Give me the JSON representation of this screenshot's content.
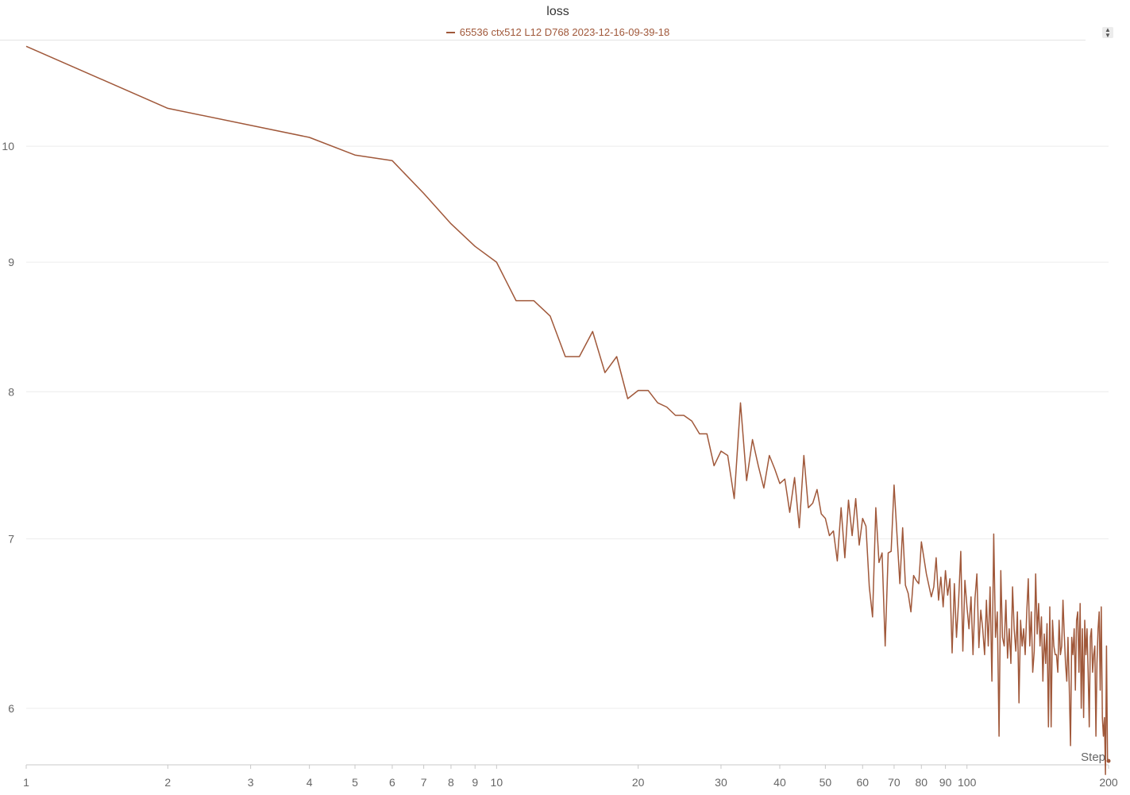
{
  "chart_data": {
    "type": "line",
    "title": "loss",
    "xlabel": "Step",
    "ylabel": "",
    "x_scale": "log",
    "y_scale": "log",
    "xlim": [
      1,
      200
    ],
    "ylim": [
      5.7,
      11
    ],
    "x_ticks": [
      1,
      2,
      3,
      4,
      5,
      6,
      7,
      8,
      9,
      10,
      20,
      30,
      40,
      50,
      60,
      70,
      80,
      90,
      100,
      200
    ],
    "x_tick_labels": [
      "1",
      "2",
      "3",
      "4",
      "5",
      "6",
      "7",
      "8",
      "9",
      "10",
      "20",
      "30",
      "40",
      "50",
      "60",
      "70",
      "80",
      "90",
      "100",
      "200"
    ],
    "y_ticks": [
      6,
      7,
      8,
      9,
      10
    ],
    "y_tick_labels": [
      "6",
      "7",
      "8",
      "9",
      "10"
    ],
    "grid": true,
    "legend_position": "top",
    "series": [
      {
        "name": "65536 ctx512 L12 D768 2023-12-16-09-39-18",
        "color": "#a0583a",
        "points": [
          [
            1,
            10.95
          ],
          [
            2,
            10.35
          ],
          [
            4,
            10.08
          ],
          [
            5,
            9.92
          ],
          [
            6,
            9.87
          ],
          [
            7,
            9.58
          ],
          [
            8,
            9.32
          ],
          [
            9,
            9.13
          ],
          [
            10,
            9.0
          ],
          [
            11,
            8.69
          ],
          [
            12,
            8.69
          ],
          [
            13,
            8.57
          ],
          [
            14,
            8.26
          ],
          [
            15,
            8.26
          ],
          [
            16,
            8.45
          ],
          [
            17,
            8.14
          ],
          [
            18,
            8.26
          ],
          [
            19,
            7.95
          ],
          [
            20,
            8.01
          ],
          [
            21,
            8.01
          ],
          [
            22,
            7.92
          ],
          [
            23,
            7.89
          ],
          [
            24,
            7.83
          ],
          [
            25,
            7.83
          ],
          [
            26,
            7.79
          ],
          [
            27,
            7.7
          ],
          [
            28,
            7.7
          ],
          [
            29,
            7.48
          ],
          [
            30,
            7.58
          ],
          [
            31,
            7.55
          ],
          [
            32,
            7.26
          ],
          [
            33,
            7.92
          ],
          [
            34,
            7.38
          ],
          [
            35,
            7.66
          ],
          [
            36,
            7.48
          ],
          [
            37,
            7.33
          ],
          [
            38,
            7.55
          ],
          [
            39,
            7.46
          ],
          [
            40,
            7.36
          ],
          [
            41,
            7.39
          ],
          [
            42,
            7.17
          ],
          [
            43,
            7.4
          ],
          [
            44,
            7.07
          ],
          [
            45,
            7.55
          ],
          [
            46,
            7.2
          ],
          [
            47,
            7.23
          ],
          [
            48,
            7.32
          ],
          [
            49,
            7.16
          ],
          [
            50,
            7.13
          ],
          [
            51,
            7.02
          ],
          [
            52,
            7.05
          ],
          [
            53,
            6.86
          ],
          [
            54,
            7.2
          ],
          [
            55,
            6.88
          ],
          [
            56,
            7.25
          ],
          [
            57,
            7.02
          ],
          [
            58,
            7.26
          ],
          [
            59,
            6.96
          ],
          [
            60,
            7.13
          ],
          [
            61,
            7.08
          ],
          [
            62,
            6.7
          ],
          [
            63,
            6.52
          ],
          [
            64,
            7.2
          ],
          [
            65,
            6.85
          ],
          [
            66,
            6.91
          ],
          [
            67,
            6.35
          ],
          [
            68,
            6.91
          ],
          [
            69,
            6.92
          ],
          [
            70,
            7.35
          ],
          [
            72,
            6.72
          ],
          [
            73,
            7.07
          ],
          [
            74,
            6.71
          ],
          [
            75,
            6.66
          ],
          [
            76,
            6.55
          ],
          [
            77,
            6.77
          ],
          [
            78,
            6.74
          ],
          [
            79,
            6.72
          ],
          [
            80,
            6.98
          ],
          [
            82,
            6.78
          ],
          [
            84,
            6.64
          ],
          [
            85,
            6.7
          ],
          [
            86,
            6.88
          ],
          [
            87,
            6.62
          ],
          [
            88,
            6.76
          ],
          [
            89,
            6.58
          ],
          [
            90,
            6.8
          ],
          [
            91,
            6.65
          ],
          [
            92,
            6.75
          ],
          [
            93,
            6.31
          ],
          [
            94,
            6.72
          ],
          [
            95,
            6.4
          ],
          [
            96,
            6.62
          ],
          [
            97,
            6.92
          ],
          [
            98,
            6.32
          ],
          [
            99,
            6.74
          ],
          [
            100,
            6.58
          ],
          [
            101,
            6.45
          ],
          [
            102,
            6.64
          ],
          [
            103,
            6.3
          ],
          [
            104,
            6.63
          ],
          [
            105,
            6.78
          ],
          [
            106,
            6.34
          ],
          [
            107,
            6.56
          ],
          [
            108,
            6.45
          ],
          [
            109,
            6.3
          ],
          [
            110,
            6.62
          ],
          [
            111,
            6.35
          ],
          [
            112,
            6.7
          ],
          [
            113,
            6.15
          ],
          [
            114,
            7.03
          ],
          [
            115,
            6.4
          ],
          [
            116,
            6.55
          ],
          [
            117,
            5.85
          ],
          [
            118,
            6.8
          ],
          [
            119,
            6.4
          ],
          [
            120,
            6.35
          ],
          [
            121,
            6.62
          ],
          [
            122,
            6.28
          ],
          [
            123,
            6.45
          ],
          [
            124,
            6.25
          ],
          [
            125,
            6.7
          ],
          [
            126,
            6.45
          ],
          [
            127,
            6.32
          ],
          [
            128,
            6.55
          ],
          [
            129,
            6.03
          ],
          [
            130,
            6.5
          ],
          [
            131,
            6.35
          ],
          [
            132,
            6.45
          ],
          [
            133,
            6.3
          ],
          [
            134,
            6.55
          ],
          [
            135,
            6.75
          ],
          [
            136,
            6.35
          ],
          [
            137,
            6.55
          ],
          [
            138,
            6.2
          ],
          [
            139,
            6.32
          ],
          [
            140,
            6.78
          ],
          [
            141,
            6.42
          ],
          [
            142,
            6.6
          ],
          [
            143,
            6.35
          ],
          [
            144,
            6.52
          ],
          [
            145,
            6.15
          ],
          [
            146,
            6.42
          ],
          [
            147,
            6.25
          ],
          [
            148,
            6.48
          ],
          [
            149,
            5.9
          ],
          [
            150,
            6.58
          ],
          [
            151,
            5.9
          ],
          [
            152,
            6.5
          ],
          [
            153,
            6.35
          ],
          [
            154,
            6.3
          ],
          [
            155,
            6.3
          ],
          [
            156,
            6.2
          ],
          [
            157,
            6.5
          ],
          [
            158,
            6.3
          ],
          [
            159,
            6.35
          ],
          [
            160,
            6.62
          ],
          [
            161,
            6.42
          ],
          [
            162,
            6.25
          ],
          [
            163,
            6.15
          ],
          [
            164,
            6.4
          ],
          [
            165,
            6.12
          ],
          [
            166,
            5.8
          ],
          [
            167,
            6.4
          ],
          [
            168,
            6.3
          ],
          [
            169,
            6.45
          ],
          [
            170,
            6.1
          ],
          [
            171,
            6.5
          ],
          [
            172,
            6.55
          ],
          [
            173,
            6.2
          ],
          [
            174,
            6.6
          ],
          [
            175,
            6.0
          ],
          [
            176,
            6.45
          ],
          [
            177,
            5.95
          ],
          [
            178,
            6.5
          ],
          [
            179,
            6.3
          ],
          [
            180,
            6.45
          ],
          [
            181,
            6.2
          ],
          [
            182,
            5.9
          ],
          [
            183,
            6.4
          ],
          [
            184,
            6.45
          ],
          [
            185,
            6.2
          ],
          [
            186,
            6.3
          ],
          [
            187,
            6.35
          ],
          [
            188,
            5.85
          ],
          [
            189,
            6.25
          ],
          [
            190,
            6.45
          ],
          [
            191,
            6.55
          ],
          [
            192,
            6.1
          ],
          [
            193,
            6.58
          ],
          [
            194,
            5.95
          ],
          [
            195,
            5.85
          ],
          [
            196,
            5.95
          ],
          [
            197,
            5.65
          ],
          [
            198,
            6.35
          ],
          [
            199,
            5.72
          ],
          [
            200,
            5.72
          ]
        ]
      }
    ]
  }
}
